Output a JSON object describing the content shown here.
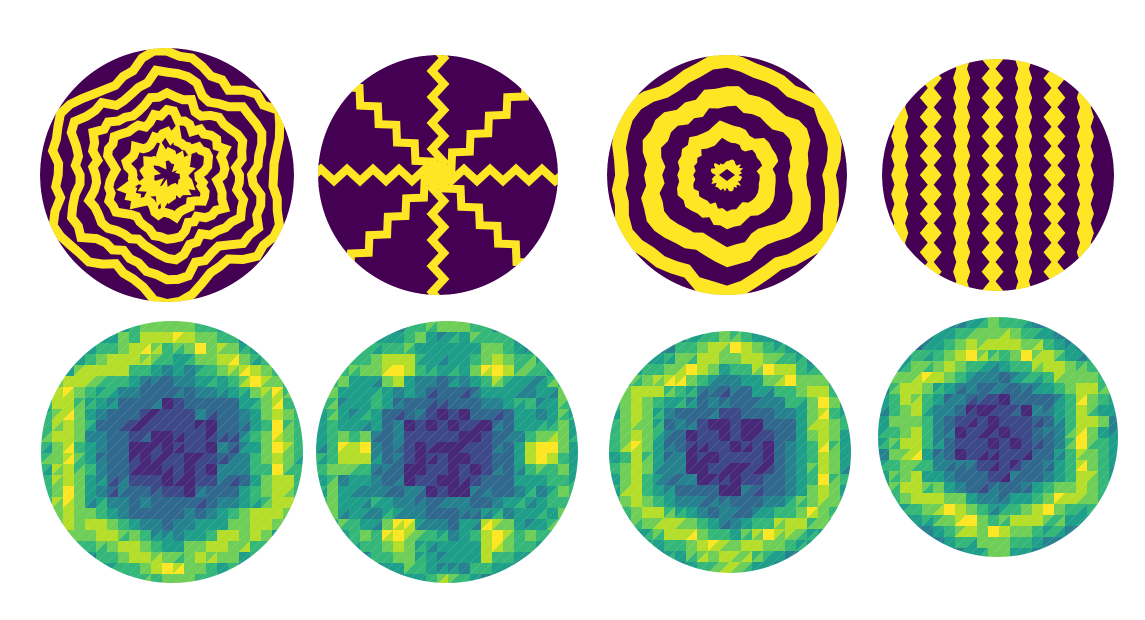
{
  "colors": {
    "background": "#ffffff",
    "binary_dark": "#440154",
    "binary_light": "#fde725",
    "viridis": [
      "#440154",
      "#482878",
      "#3e4989",
      "#31688e",
      "#26828e",
      "#1f9e89",
      "#35b779",
      "#6ece58",
      "#b5de2b",
      "#fde725"
    ]
  },
  "panels": {
    "top_row": [
      {
        "name": "concentric-rings-pattern",
        "pattern": "rings",
        "detail": 6
      },
      {
        "name": "radial-spokes-pattern",
        "pattern": "spokes",
        "detail": 8
      },
      {
        "name": "target-rings-pattern",
        "pattern": "target",
        "detail": 3
      },
      {
        "name": "vertical-stripes-pattern",
        "pattern": "stripes",
        "detail": 7
      }
    ],
    "bottom_row": [
      {
        "name": "hexagonal-ring-heatmap-1",
        "pattern": "hexring",
        "ring": 0.78
      },
      {
        "name": "hexagonal-ring-heatmap-2",
        "pattern": "hexring-spotted",
        "ring": 0.74
      },
      {
        "name": "hexagonal-ring-heatmap-3",
        "pattern": "hexring",
        "ring": 0.74
      },
      {
        "name": "hexagonal-ring-heatmap-4",
        "pattern": "hexring",
        "ring": 0.7
      }
    ]
  }
}
